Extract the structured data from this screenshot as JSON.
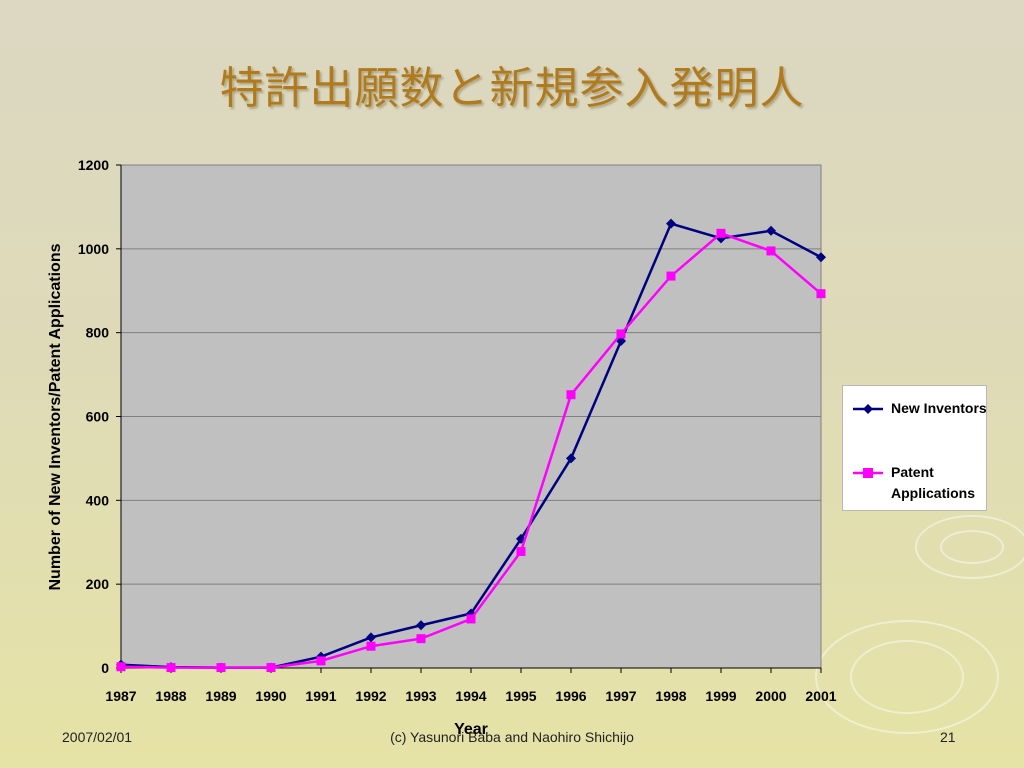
{
  "slide": {
    "title": "特許出願数と新規参入発明人",
    "footer_date": "2007/02/01",
    "footer_copyright": "(c) Yasunori Baba and Naohiro Shichijo",
    "page_number": "21"
  },
  "chart_data": {
    "type": "line",
    "title": "",
    "xlabel": "Year",
    "ylabel": "Number of New Inventors/Patent Applications",
    "ylim": [
      0,
      1200
    ],
    "yticks": [
      0,
      200,
      400,
      600,
      800,
      1000,
      1200
    ],
    "categories": [
      "1987",
      "1988",
      "1989",
      "1990",
      "1991",
      "1992",
      "1993",
      "1994",
      "1995",
      "1996",
      "1997",
      "1998",
      "1999",
      "2000",
      "2001"
    ],
    "grid": "horizontal",
    "legend_position": "right",
    "plot_background": "#c0c0c0",
    "series": [
      {
        "name": "New Inventors",
        "color": "#000080",
        "marker": "diamond",
        "values": [
          8,
          2,
          1,
          1,
          27,
          73,
          102,
          130,
          308,
          500,
          780,
          1060,
          1025,
          1043,
          980
        ]
      },
      {
        "name": "Patent Applications",
        "color": "#ff00ff",
        "marker": "square",
        "values": [
          3,
          1,
          1,
          1,
          17,
          52,
          70,
          117,
          278,
          652,
          797,
          935,
          1037,
          995,
          893
        ]
      }
    ]
  }
}
